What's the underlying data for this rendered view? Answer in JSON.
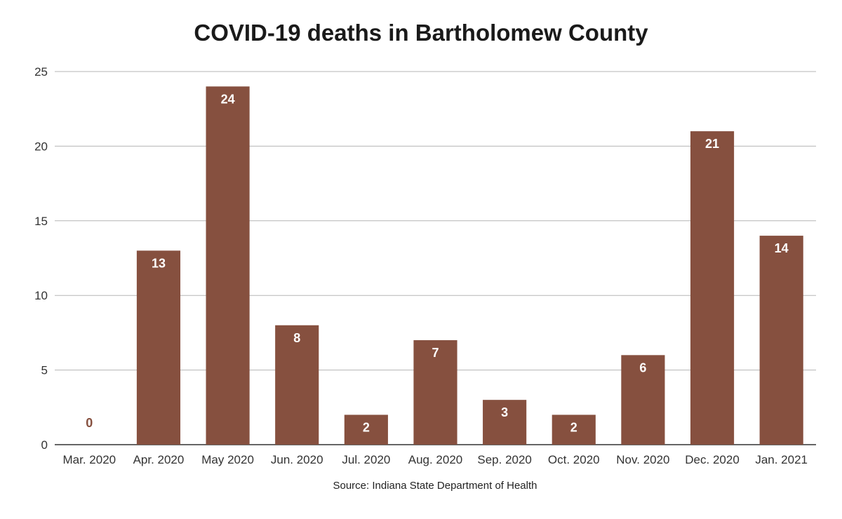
{
  "chart_data": {
    "type": "bar",
    "title": "COVID-19 deaths in Bartholomew County",
    "xlabel": "",
    "ylabel": "",
    "categories": [
      "Mar. 2020",
      "Apr. 2020",
      "May 2020",
      "Jun. 2020",
      "Jul. 2020",
      "Aug. 2020",
      "Sep. 2020",
      "Oct. 2020",
      "Nov. 2020",
      "Dec. 2020",
      "Jan. 2021"
    ],
    "values": [
      0,
      13,
      24,
      8,
      2,
      7,
      3,
      2,
      6,
      21,
      14
    ],
    "ylim": [
      0,
      25
    ],
    "yticks": [
      0,
      5,
      10,
      15,
      20,
      25
    ],
    "grid": true,
    "legend": "none",
    "bar_color": "#86503f",
    "zero_label_color": "#86503f",
    "label_color": "#ffffff",
    "source": "Source: Indiana State Department of Health"
  }
}
